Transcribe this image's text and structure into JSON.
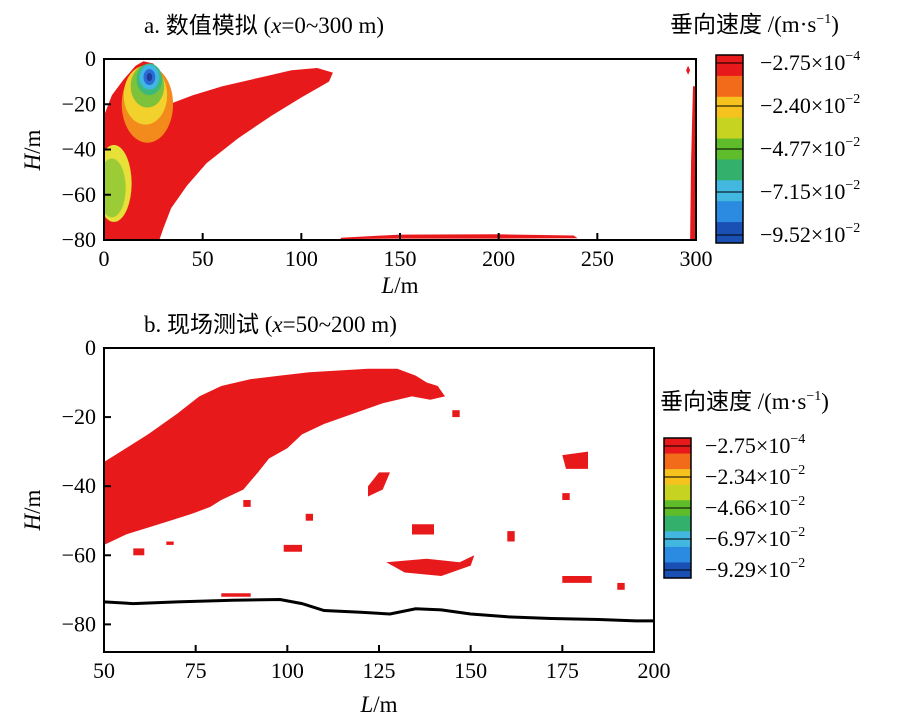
{
  "chart_data": [
    {
      "type": "heatmap",
      "title_prefix": "a. 数值模拟 (",
      "title_var": "x",
      "title_suffix": "=0~300 m)",
      "xlabel_var": "L",
      "xlabel_unit": "/m",
      "ylabel_var": "H",
      "ylabel_unit": "/m",
      "xlim": [
        0,
        300
      ],
      "ylim": [
        -80,
        0
      ],
      "xticks": [
        "0",
        "50",
        "100",
        "150",
        "200",
        "250",
        "300"
      ],
      "yticks": [
        "0",
        "−20",
        "−40",
        "−60",
        "−80"
      ],
      "colorbar": {
        "title": "垂向速度 /(m·s",
        "title_sup": "−1",
        "title_end": ")",
        "labels": [
          {
            "base": "−2.75×10",
            "exp": "−4"
          },
          {
            "base": "−2.40×10",
            "exp": "−2"
          },
          {
            "base": "−4.77×10",
            "exp": "−2"
          },
          {
            "base": "−7.15×10",
            "exp": "−2"
          },
          {
            "base": "−9.52×10",
            "exp": "−2"
          }
        ],
        "colors": [
          "#e8191b",
          "#f26b1b",
          "#f5c21e",
          "#c6d321",
          "#5fbd2c",
          "#33b06c",
          "#42b8e0",
          "#2a8be0",
          "#1a4fb4"
        ]
      },
      "regions": [
        {
          "name": "left-plume",
          "kind": "red-region",
          "color": "#e8191b",
          "points": [
            [
              0,
              -80
            ],
            [
              0,
              -25
            ],
            [
              4,
              -16
            ],
            [
              10,
              -9
            ],
            [
              16,
              -3
            ],
            [
              20,
              -1
            ],
            [
              25,
              -2
            ],
            [
              29,
              -8
            ],
            [
              31,
              -15
            ],
            [
              33,
              -20
            ],
            [
              45,
              -16
            ],
            [
              60,
              -12
            ],
            [
              80,
              -8
            ],
            [
              95,
              -5
            ],
            [
              108,
              -4
            ],
            [
              116,
              -6
            ],
            [
              114,
              -10
            ],
            [
              100,
              -17
            ],
            [
              85,
              -25
            ],
            [
              68,
              -35
            ],
            [
              52,
              -46
            ],
            [
              42,
              -56
            ],
            [
              34,
              -66
            ],
            [
              30,
              -75
            ],
            [
              28,
              -80
            ]
          ]
        },
        {
          "name": "bottom-strip",
          "kind": "red-region",
          "color": "#e8191b",
          "points": [
            [
              120,
              -79
            ],
            [
              150,
              -77.6
            ],
            [
              200,
              -77.5
            ],
            [
              238,
              -78
            ],
            [
              240,
              -79.2
            ],
            [
              200,
              -79.4
            ],
            [
              150,
              -79.4
            ],
            [
              120,
              -79.6
            ]
          ]
        },
        {
          "name": "right-edge",
          "kind": "red-region",
          "color": "#e8191b",
          "points": [
            [
              297,
              -80
            ],
            [
              297.5,
              -45
            ],
            [
              298.5,
              -12
            ],
            [
              299.5,
              -12
            ],
            [
              299.5,
              -80
            ]
          ]
        },
        {
          "name": "right-top-dot",
          "kind": "red-region",
          "color": "#e8191b",
          "points": [
            [
              295,
              -5
            ],
            [
              296,
              -3
            ],
            [
              297,
              -5
            ],
            [
              296,
              -7
            ]
          ]
        }
      ],
      "contours": [
        {
          "name": "orange-band",
          "color": "#f28a1c",
          "cx": 22,
          "cy": -20,
          "rx": 13,
          "ry": 17
        },
        {
          "name": "yellow-band",
          "color": "#f3d12c",
          "cx": 21,
          "cy": -16,
          "rx": 11,
          "ry": 13
        },
        {
          "name": "yellow-left",
          "color": "#e7e039",
          "cx": 5,
          "cy": -55,
          "rx": 9,
          "ry": 17
        },
        {
          "name": "green-left",
          "color": "#9ccc35",
          "cx": 4,
          "cy": -57,
          "rx": 7,
          "ry": 13
        },
        {
          "name": "green-band",
          "color": "#7ec23b",
          "cx": 22,
          "cy": -12,
          "rx": 8.5,
          "ry": 9.5
        },
        {
          "name": "teal-band",
          "color": "#3dba7a",
          "cx": 23,
          "cy": -9,
          "rx": 6.5,
          "ry": 7
        },
        {
          "name": "cyan-band",
          "color": "#3fb6e5",
          "cx": 23,
          "cy": -8,
          "rx": 5,
          "ry": 5.5
        },
        {
          "name": "blue-core",
          "color": "#2b6bd3",
          "cx": 23,
          "cy": -8,
          "rx": 3,
          "ry": 3.5
        },
        {
          "name": "dark-core",
          "color": "#1c3c9c",
          "cx": 23,
          "cy": -8,
          "rx": 1.4,
          "ry": 1.8
        }
      ]
    },
    {
      "type": "heatmap",
      "title_prefix": "b. 现场测试 (",
      "title_var": "x",
      "title_suffix": "=50~200 m)",
      "xlabel_var": "L",
      "xlabel_unit": "/m",
      "ylabel_var": "H",
      "ylabel_unit": "/m",
      "xlim": [
        50,
        200
      ],
      "ylim": [
        -88,
        0
      ],
      "xticks": [
        "50",
        "75",
        "100",
        "125",
        "150",
        "175",
        "200"
      ],
      "yticks": [
        "0",
        "−20",
        "−40",
        "−60",
        "−80"
      ],
      "colorbar": {
        "title": "垂向速度 /(m·s",
        "title_sup": "−1",
        "title_end": ")",
        "labels": [
          {
            "base": "−2.75×10",
            "exp": "−4"
          },
          {
            "base": "−2.34×10",
            "exp": "−2"
          },
          {
            "base": "−4.66×10",
            "exp": "−2"
          },
          {
            "base": "−6.97×10",
            "exp": "−2"
          },
          {
            "base": "−9.29×10",
            "exp": "−2"
          }
        ],
        "colors": [
          "#e8191b",
          "#f26b1b",
          "#f5c21e",
          "#c6d321",
          "#5fbd2c",
          "#33b06c",
          "#42b8e0",
          "#2a8be0",
          "#1a4fb4"
        ]
      },
      "regions": [
        {
          "name": "main-band",
          "kind": "red-region",
          "color": "#e8191b",
          "points": [
            [
              50,
              -57
            ],
            [
              50,
              -33
            ],
            [
              56,
              -29
            ],
            [
              62,
              -25
            ],
            [
              66,
              -22
            ],
            [
              70,
              -19
            ],
            [
              76,
              -14
            ],
            [
              82,
              -11
            ],
            [
              90,
              -9
            ],
            [
              98,
              -8
            ],
            [
              106,
              -7
            ],
            [
              114,
              -6.5
            ],
            [
              122,
              -6
            ],
            [
              130,
              -6
            ],
            [
              135,
              -8
            ],
            [
              138,
              -10
            ],
            [
              141,
              -11
            ],
            [
              143,
              -14
            ],
            [
              139,
              -15
            ],
            [
              134,
              -14
            ],
            [
              126,
              -16
            ],
            [
              118,
              -19
            ],
            [
              110,
              -22
            ],
            [
              104,
              -25
            ],
            [
              100,
              -29
            ],
            [
              95,
              -32
            ],
            [
              92,
              -36
            ],
            [
              88,
              -41
            ],
            [
              84,
              -43
            ],
            [
              82,
              -44
            ],
            [
              79,
              -46
            ],
            [
              74,
              -48
            ],
            [
              68,
              -50
            ],
            [
              62,
              -52
            ],
            [
              56,
              -54
            ],
            [
              52,
              -56
            ]
          ]
        },
        {
          "name": "blob-1",
          "kind": "red-region",
          "color": "#e8191b",
          "points": [
            [
              122,
              -43
            ],
            [
              126,
              -41
            ],
            [
              128,
              -36
            ],
            [
              125,
              -36
            ],
            [
              122,
              -40
            ]
          ]
        },
        {
          "name": "blob-2",
          "kind": "red-region",
          "color": "#e8191b",
          "points": [
            [
              134,
              -51
            ],
            [
              140,
              -51
            ],
            [
              140,
              -54
            ],
            [
              134,
              -54
            ]
          ]
        },
        {
          "name": "blob-3",
          "kind": "red-region",
          "color": "#e8191b",
          "points": [
            [
              99,
              -57
            ],
            [
              104,
              -57
            ],
            [
              104,
              -59
            ],
            [
              99,
              -59
            ]
          ]
        },
        {
          "name": "blob-4",
          "kind": "red-region",
          "color": "#e8191b",
          "points": [
            [
              127,
              -62
            ],
            [
              138,
              -61
            ],
            [
              147,
              -62
            ],
            [
              151,
              -60
            ],
            [
              150,
              -63
            ],
            [
              142,
              -66
            ],
            [
              132,
              -65
            ]
          ]
        },
        {
          "name": "blob-5",
          "kind": "red-region",
          "color": "#e8191b",
          "points": [
            [
              175,
              -31
            ],
            [
              182,
              -30
            ],
            [
              182,
              -35
            ],
            [
              176,
              -35
            ]
          ]
        },
        {
          "name": "blob-6",
          "kind": "red-region",
          "color": "#e8191b",
          "points": [
            [
              175,
              -66
            ],
            [
              183,
              -66
            ],
            [
              183,
              -68
            ],
            [
              175,
              -68
            ]
          ]
        },
        {
          "name": "blob-7",
          "kind": "red-region",
          "color": "#e8191b",
          "points": [
            [
              82,
              -71
            ],
            [
              90,
              -71
            ],
            [
              90,
              -72
            ],
            [
              82,
              -72
            ]
          ]
        },
        {
          "name": "blob-8",
          "kind": "red-region",
          "color": "#e8191b",
          "points": [
            [
              58,
              -58
            ],
            [
              61,
              -58
            ],
            [
              61,
              -60
            ],
            [
              58,
              -60
            ]
          ]
        },
        {
          "name": "blob-9",
          "kind": "red-region",
          "color": "#e8191b",
          "points": [
            [
              145,
              -18
            ],
            [
              147,
              -18
            ],
            [
              147,
              -20
            ],
            [
              145,
              -20
            ]
          ]
        },
        {
          "name": "blob-10",
          "kind": "red-region",
          "color": "#e8191b",
          "points": [
            [
              81,
              -34
            ],
            [
              84,
              -34
            ],
            [
              84,
              -37
            ],
            [
              81,
              -37
            ]
          ]
        },
        {
          "name": "blob-11",
          "kind": "red-region",
          "color": "#e8191b",
          "points": [
            [
              160,
              -53
            ],
            [
              162,
              -53
            ],
            [
              162,
              -56
            ],
            [
              160,
              -56
            ]
          ]
        },
        {
          "name": "blob-12",
          "kind": "red-region",
          "color": "#e8191b",
          "points": [
            [
              175,
              -42
            ],
            [
              177,
              -42
            ],
            [
              177,
              -44
            ],
            [
              175,
              -44
            ]
          ]
        },
        {
          "name": "blob-13",
          "kind": "red-region",
          "color": "#e8191b",
          "points": [
            [
              67,
              -56
            ],
            [
              69,
              -56
            ],
            [
              69,
              -57
            ],
            [
              67,
              -57
            ]
          ]
        },
        {
          "name": "blob-14",
          "kind": "red-region",
          "color": "#e8191b",
          "points": [
            [
              88,
              -44
            ],
            [
              90,
              -44
            ],
            [
              90,
              -46
            ],
            [
              88,
              -46
            ]
          ]
        },
        {
          "name": "blob-15",
          "kind": "red-region",
          "color": "#e8191b",
          "points": [
            [
              105,
              -48
            ],
            [
              107,
              -48
            ],
            [
              107,
              -50
            ],
            [
              105,
              -50
            ]
          ]
        },
        {
          "name": "blob-16",
          "kind": "red-region",
          "color": "#e8191b",
          "points": [
            [
              190,
              -68
            ],
            [
              192,
              -68
            ],
            [
              192,
              -70
            ],
            [
              190,
              -70
            ]
          ]
        }
      ],
      "boundary": {
        "name": "bottom-boundary",
        "color": "#000000",
        "points": [
          [
            50,
            -73.5
          ],
          [
            58,
            -74
          ],
          [
            70,
            -73.5
          ],
          [
            85,
            -73
          ],
          [
            98,
            -72.8
          ],
          [
            104,
            -74
          ],
          [
            110,
            -76
          ],
          [
            120,
            -76.5
          ],
          [
            128,
            -77
          ],
          [
            135,
            -75.5
          ],
          [
            142,
            -75.8
          ],
          [
            150,
            -77
          ],
          [
            160,
            -77.8
          ],
          [
            172,
            -78.3
          ],
          [
            185,
            -78.6
          ],
          [
            195,
            -79
          ],
          [
            200,
            -79
          ]
        ]
      }
    }
  ]
}
